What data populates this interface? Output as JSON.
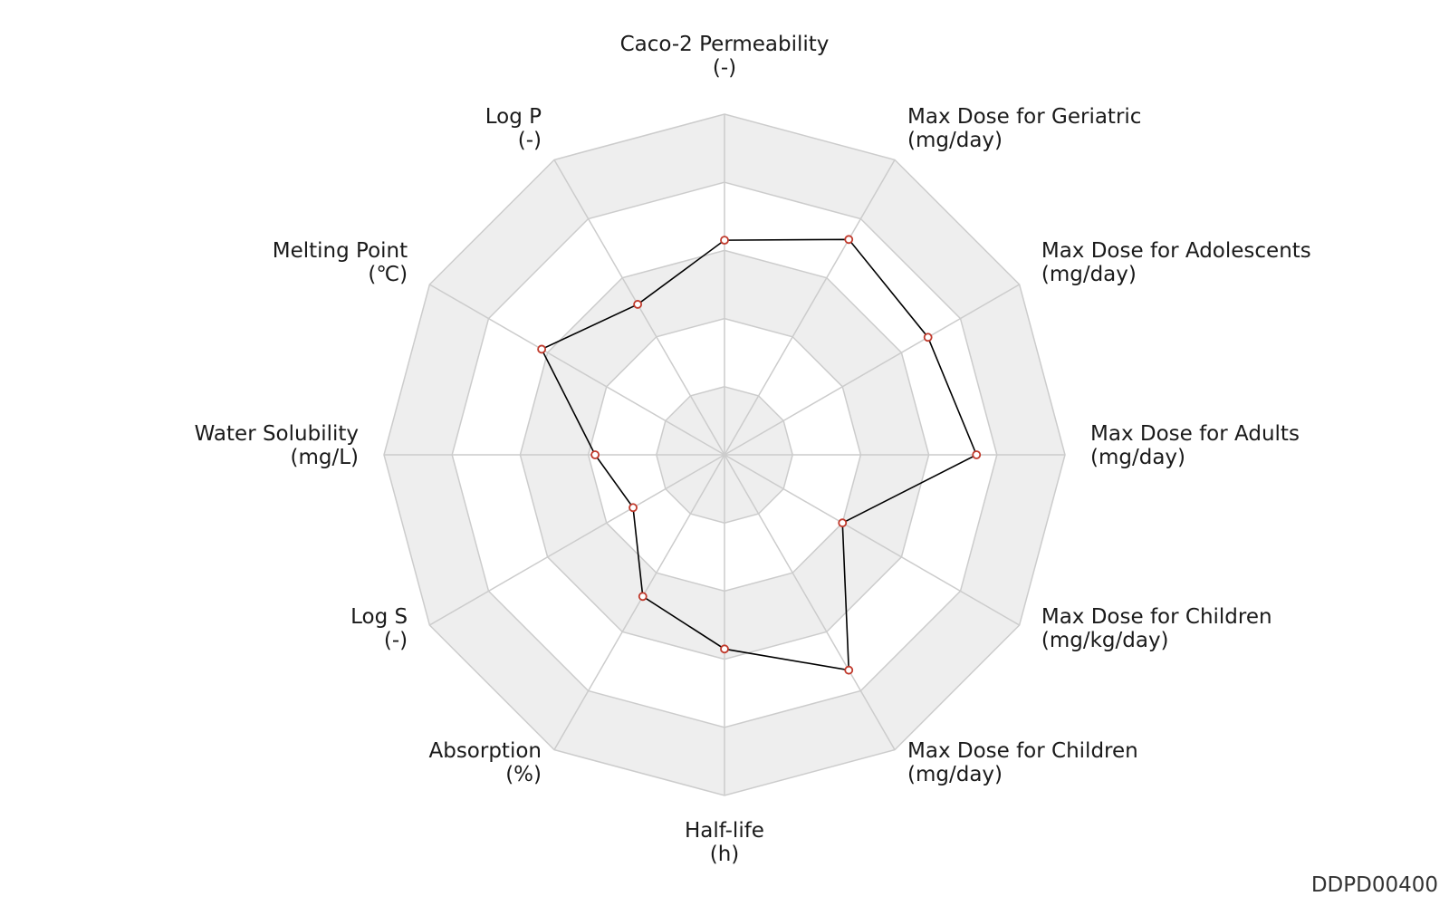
{
  "chart_data": {
    "type": "radar",
    "axes": [
      {
        "name": "Caco-2 Permeability",
        "unit": "(-)"
      },
      {
        "name": "Max Dose for Geriatric",
        "unit": "(mg/day)"
      },
      {
        "name": "Max Dose for Adolescents",
        "unit": "(mg/day)"
      },
      {
        "name": "Max Dose for Adults",
        "unit": "(mg/day)"
      },
      {
        "name": "Max Dose for Children",
        "unit": "(mg/kg/day)"
      },
      {
        "name": "Max Dose for Children",
        "unit": "(mg/day)"
      },
      {
        "name": "Half-life",
        "unit": "(h)"
      },
      {
        "name": "Absorption",
        "unit": "(%)"
      },
      {
        "name": "Log S",
        "unit": "(-)"
      },
      {
        "name": "Water Solubility",
        "unit": "(mg/L)"
      },
      {
        "name": "Melting Point",
        "unit": "(℃)"
      },
      {
        "name": "Log P",
        "unit": "(-)"
      }
    ],
    "values": [
      0.63,
      0.73,
      0.69,
      0.74,
      0.4,
      0.73,
      0.57,
      0.48,
      0.31,
      0.38,
      0.62,
      0.51
    ],
    "range": [
      0,
      1
    ],
    "rings": 5,
    "grid": true,
    "colors": {
      "band_fill": "#eeeeee",
      "grid_line": "#cccccc",
      "series_line": "#000000",
      "marker_edge": "#c0392b",
      "marker_fill": "#ffffff"
    }
  },
  "watermark": "DDPD00400"
}
